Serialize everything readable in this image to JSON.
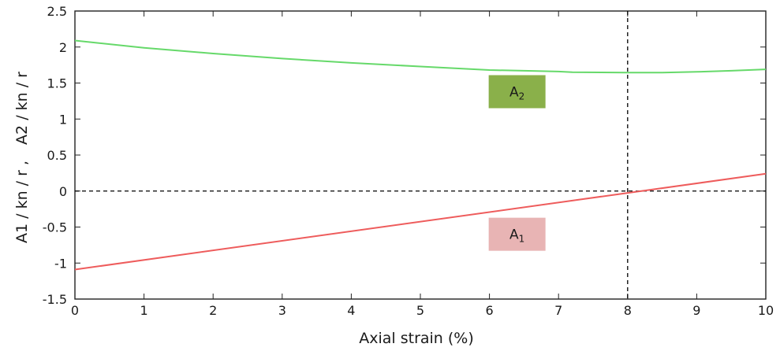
{
  "chart_data": {
    "type": "line",
    "xlabel": "Axial strain (%)",
    "ylabel_left": "A1 / kn / r ,",
    "ylabel_right": "A2 / kn / r",
    "xlim": [
      0,
      10
    ],
    "ylim": [
      -1.5,
      2.5
    ],
    "xticks": [
      0,
      1,
      2,
      3,
      4,
      5,
      6,
      7,
      8,
      9,
      10
    ],
    "xtick_labels": [
      "0",
      "1",
      "2",
      "3",
      "4",
      "5",
      "6",
      "7",
      "8",
      "9",
      "10"
    ],
    "yticks": [
      -1.5,
      -1,
      -0.5,
      0,
      0.5,
      1,
      1.5,
      2,
      2.5
    ],
    "ytick_labels": [
      "-1.5",
      "-1",
      "-0.5",
      "0",
      "0.5",
      "1",
      "1.5",
      "2",
      "2.5"
    ],
    "grid": false,
    "series": [
      {
        "name": "A2",
        "color": "#66d96a",
        "x": [
          0,
          1,
          2,
          3,
          4,
          5,
          6,
          6.5,
          7,
          7.2,
          8,
          8.5,
          9,
          9.5,
          10
        ],
        "y": [
          2.09,
          1.99,
          1.91,
          1.84,
          1.78,
          1.73,
          1.68,
          1.67,
          1.66,
          1.65,
          1.645,
          1.645,
          1.655,
          1.67,
          1.69
        ]
      },
      {
        "name": "A1",
        "color": "#ee5c5c",
        "x": [
          0,
          10
        ],
        "y": [
          -1.09,
          0.24
        ]
      }
    ],
    "reference_lines": [
      {
        "orientation": "horizontal",
        "value": 0,
        "style": "dashed",
        "color": "#000000"
      },
      {
        "orientation": "vertical",
        "value": 8,
        "style": "dashed",
        "color": "#000000"
      }
    ],
    "annotations": [
      {
        "series": "A2",
        "text": "A",
        "subscript": "2",
        "background": "#8ab04a",
        "x": 6.4,
        "y": 1.38
      },
      {
        "series": "A1",
        "text": "A",
        "subscript": "1",
        "background": "#e8b4b4",
        "x": 6.4,
        "y": -0.6
      }
    ]
  }
}
